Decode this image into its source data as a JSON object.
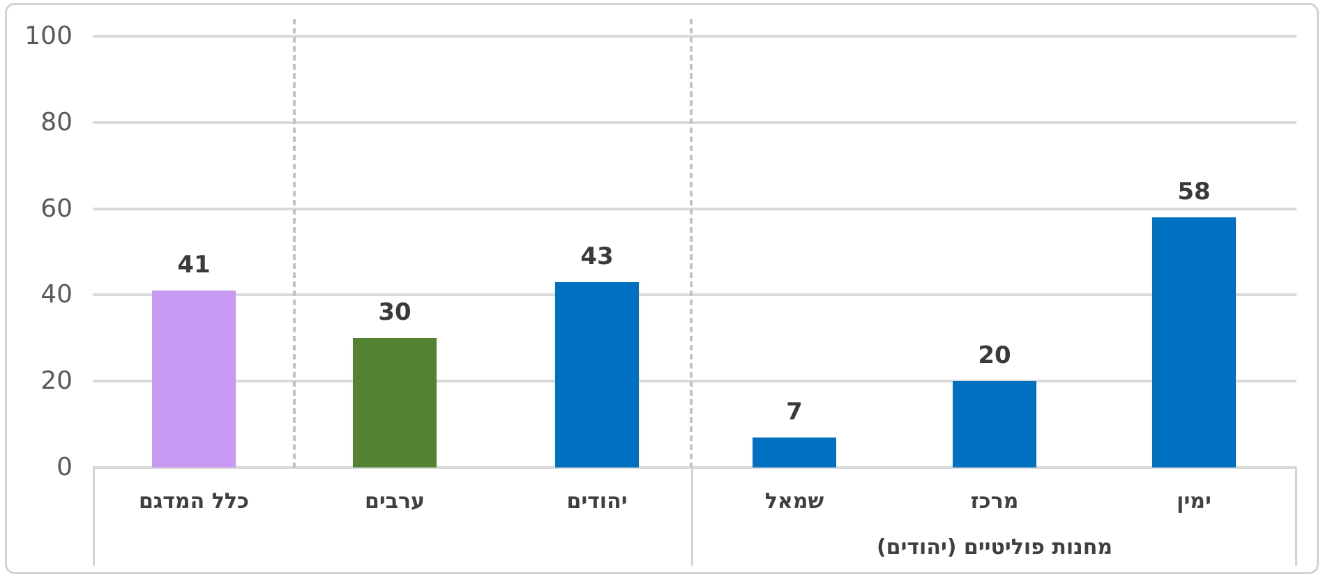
{
  "chart_data": {
    "type": "bar",
    "categories": [
      "כלל המדגם",
      "ערבים",
      "יהודים",
      "שמאל",
      "מרכז",
      "ימין"
    ],
    "values": [
      41,
      30,
      43,
      7,
      20,
      58
    ],
    "bar_colors": [
      "#C99AF3",
      "#538230",
      "#0070C0",
      "#0070C0",
      "#0070C0",
      "#0070C0"
    ],
    "group_label": "מחנות פוליטיים (יהודים)",
    "groups": [
      {
        "label": "",
        "category_indexes": [
          0
        ]
      },
      {
        "label": "",
        "category_indexes": [
          1,
          2
        ]
      },
      {
        "label": "מחנות פוליטיים (יהודים)",
        "category_indexes": [
          3,
          4,
          5
        ]
      }
    ],
    "yticks": [
      0,
      20,
      40,
      60,
      80,
      100
    ],
    "ylim": [
      0,
      100
    ],
    "grid": true,
    "legend": "none"
  },
  "colors": {
    "grid": "#DADADA",
    "dashed_separator": "#C2C2C2",
    "chart_border": "#D2D2D2",
    "axis_divider": "#D4D4D4",
    "tick_text": "#595959",
    "label_text": "#3F3F3F"
  }
}
